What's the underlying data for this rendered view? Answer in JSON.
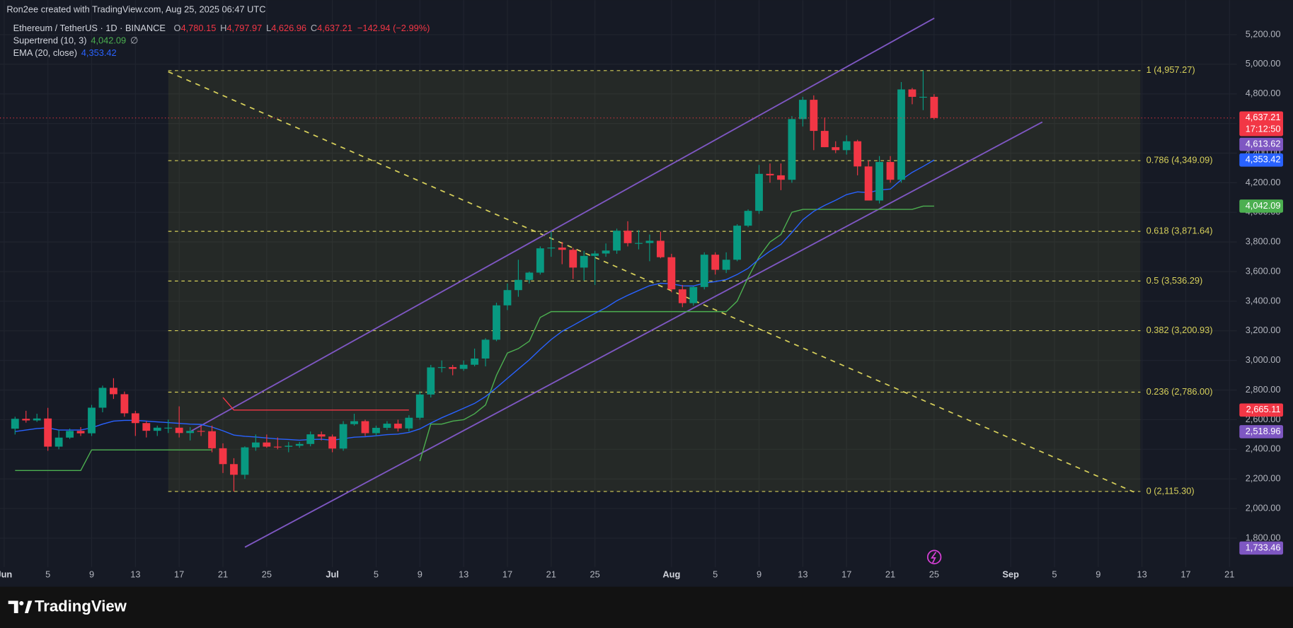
{
  "header": {
    "credit": "Ron2ee created with TradingView.com, Aug 25, 2025 06:47 UTC"
  },
  "chart_data": {
    "type": "candlestick",
    "symbol": "Ethereum / TetherUS · 1D · BINANCE",
    "ohlc_legend": [
      {
        "label": "O",
        "value": "4,780.15"
      },
      {
        "label": "H",
        "value": "4,797.97"
      },
      {
        "label": "L",
        "value": "4,626.96"
      },
      {
        "label": "C",
        "value": "4,637.21"
      }
    ],
    "change": "−142.94 (−2.99%)",
    "x": [
      "2025-06-02",
      "2025-06-03",
      "2025-06-04",
      "2025-06-05",
      "2025-06-06",
      "2025-06-07",
      "2025-06-08",
      "2025-06-09",
      "2025-06-10",
      "2025-06-11",
      "2025-06-12",
      "2025-06-13",
      "2025-06-14",
      "2025-06-15",
      "2025-06-16",
      "2025-06-17",
      "2025-06-18",
      "2025-06-19",
      "2025-06-20",
      "2025-06-21",
      "2025-06-22",
      "2025-06-23",
      "2025-06-24",
      "2025-06-25",
      "2025-06-26",
      "2025-06-27",
      "2025-06-28",
      "2025-06-29",
      "2025-06-30",
      "2025-07-01",
      "2025-07-02",
      "2025-07-03",
      "2025-07-04",
      "2025-07-05",
      "2025-07-06",
      "2025-07-07",
      "2025-07-08",
      "2025-07-09",
      "2025-07-10",
      "2025-07-11",
      "2025-07-12",
      "2025-07-13",
      "2025-07-14",
      "2025-07-15",
      "2025-07-16",
      "2025-07-17",
      "2025-07-18",
      "2025-07-19",
      "2025-07-20",
      "2025-07-21",
      "2025-07-22",
      "2025-07-23",
      "2025-07-24",
      "2025-07-25",
      "2025-07-26",
      "2025-07-27",
      "2025-07-28",
      "2025-07-29",
      "2025-07-30",
      "2025-07-31",
      "2025-08-01",
      "2025-08-02",
      "2025-08-03",
      "2025-08-04",
      "2025-08-05",
      "2025-08-06",
      "2025-08-07",
      "2025-08-08",
      "2025-08-09",
      "2025-08-10",
      "2025-08-11",
      "2025-08-12",
      "2025-08-13",
      "2025-08-14",
      "2025-08-15",
      "2025-08-16",
      "2025-08-17",
      "2025-08-18",
      "2025-08-19",
      "2025-08-20",
      "2025-08-21",
      "2025-08-22",
      "2025-08-23",
      "2025-08-24",
      "2025-08-25"
    ],
    "open": [
      2539,
      2606,
      2595,
      2608,
      2418,
      2479,
      2524,
      2508,
      2681,
      2815,
      2772,
      2643,
      2577,
      2525,
      2546,
      2546,
      2510,
      2524,
      2522,
      2407,
      2300,
      2228,
      2413,
      2446,
      2418,
      2417,
      2424,
      2436,
      2501,
      2486,
      2405,
      2570,
      2590,
      2509,
      2545,
      2573,
      2541,
      2613,
      2770,
      2953,
      2955,
      2943,
      2971,
      3013,
      3140,
      3372,
      3475,
      3544,
      3593,
      3757,
      3762,
      3747,
      3627,
      3706,
      3722,
      3742,
      3876,
      3792,
      3793,
      3808,
      3697,
      3480,
      3387,
      3496,
      3714,
      3612,
      3680,
      3910,
      4010,
      4260,
      4250,
      4220,
      4630,
      4760,
      4550,
      4440,
      4420,
      4480,
      4310,
      4080,
      4340,
      4220,
      4830,
      4780,
      4780.15
    ],
    "high": [
      2620,
      2660,
      2640,
      2680,
      2530,
      2540,
      2550,
      2700,
      2830,
      2880,
      2790,
      2660,
      2590,
      2560,
      2600,
      2690,
      2550,
      2560,
      2560,
      2440,
      2340,
      2420,
      2500,
      2500,
      2480,
      2450,
      2450,
      2520,
      2520,
      2500,
      2590,
      2640,
      2600,
      2560,
      2590,
      2600,
      2630,
      2790,
      2970,
      3000,
      2970,
      3000,
      3080,
      3150,
      3390,
      3520,
      3680,
      3600,
      3770,
      3870,
      3800,
      3760,
      3740,
      3740,
      3790,
      3890,
      3940,
      3880,
      3850,
      3870,
      3720,
      3510,
      3500,
      3730,
      3730,
      3730,
      3920,
      4020,
      4320,
      4330,
      4330,
      4650,
      4780,
      4790,
      4640,
      4480,
      4520,
      4490,
      4350,
      4380,
      4380,
      4880,
      4840,
      4957,
      4797.97
    ],
    "low": [
      2500,
      2580,
      2585,
      2390,
      2400,
      2470,
      2490,
      2490,
      2650,
      2740,
      2620,
      2490,
      2480,
      2490,
      2510,
      2480,
      2460,
      2490,
      2380,
      2240,
      2115,
      2200,
      2390,
      2410,
      2400,
      2380,
      2410,
      2420,
      2460,
      2380,
      2390,
      2560,
      2490,
      2490,
      2530,
      2520,
      2520,
      2600,
      2750,
      2920,
      2900,
      2930,
      2960,
      2960,
      3130,
      3340,
      3430,
      3520,
      3580,
      3700,
      3650,
      3550,
      3540,
      3510,
      3700,
      3720,
      3770,
      3750,
      3670,
      3690,
      3460,
      3360,
      3370,
      3480,
      3580,
      3590,
      3670,
      3900,
      3990,
      4200,
      4150,
      4200,
      4580,
      4420,
      4440,
      4400,
      4390,
      4250,
      4080,
      4060,
      4200,
      4200,
      4730,
      4690,
      4626.96
    ],
    "close": [
      2606,
      2595,
      2608,
      2418,
      2479,
      2524,
      2508,
      2681,
      2815,
      2772,
      2643,
      2577,
      2525,
      2546,
      2546,
      2510,
      2524,
      2522,
      2407,
      2300,
      2228,
      2413,
      2446,
      2418,
      2417,
      2424,
      2436,
      2501,
      2486,
      2405,
      2570,
      2590,
      2509,
      2545,
      2573,
      2541,
      2613,
      2770,
      2953,
      2955,
      2943,
      2971,
      3013,
      3140,
      3372,
      3475,
      3544,
      3593,
      3757,
      3762,
      3747,
      3627,
      3706,
      3722,
      3742,
      3876,
      3792,
      3793,
      3808,
      3697,
      3480,
      3387,
      3496,
      3714,
      3612,
      3680,
      3910,
      4010,
      4260,
      4250,
      4220,
      4630,
      4760,
      4550,
      4440,
      4420,
      4480,
      4310,
      4080,
      4340,
      4220,
      4830,
      4780,
      4780.15,
      4637.21
    ],
    "up_color": "#089981",
    "down_color": "#f23645",
    "indicators": [
      {
        "name": "Supertrend (10, 3)",
        "value_label": "4,042.09",
        "symbol": "∅",
        "color": "#4caf50",
        "down_color": "#f23645",
        "up_values": [
          2257,
          2257,
          2257,
          2257,
          2257,
          2257,
          2257,
          2396,
          2396,
          2396,
          2396,
          2396,
          2396,
          2396,
          2396,
          2396,
          2396,
          2396,
          2396,
          null,
          null,
          null,
          null,
          null,
          null,
          null,
          null,
          null,
          null,
          null,
          null,
          null,
          null,
          null,
          null,
          null,
          null,
          2320,
          2570,
          2570,
          2590,
          2600,
          2640,
          2700,
          2900,
          3050,
          3080,
          3130,
          3290,
          3330,
          3330,
          3330,
          3330,
          3330,
          3330,
          3330,
          3330,
          3330,
          3330,
          3330,
          3330,
          3330,
          3330,
          3330,
          3330,
          3330,
          3400,
          3560,
          3700,
          3800,
          3850,
          4000,
          4020,
          4020,
          4020,
          4020,
          4020,
          4020,
          4020,
          4020,
          4020,
          4020,
          4020,
          4042.09,
          4042.09
        ],
        "down_values": [
          null,
          null,
          null,
          null,
          null,
          null,
          null,
          null,
          null,
          null,
          null,
          null,
          null,
          null,
          null,
          null,
          null,
          null,
          null,
          2750,
          2665,
          2665,
          2665,
          2665,
          2665,
          2665,
          2665,
          2665,
          2665,
          2665,
          2665,
          2665,
          2665,
          2665,
          2665,
          2665,
          2665,
          null,
          null,
          null,
          null,
          null,
          null,
          null,
          null,
          null,
          null,
          null,
          null,
          null,
          null,
          null,
          null,
          null,
          null,
          null,
          null,
          null,
          null,
          null,
          null,
          null,
          null,
          null,
          null,
          null,
          null,
          null,
          null,
          null,
          null,
          null,
          null,
          null,
          null,
          null,
          null,
          null,
          null,
          null,
          null,
          null,
          null,
          null,
          null
        ]
      },
      {
        "name": "EMA (20, close)",
        "value_label": "4,353.42",
        "color": "#2962ff",
        "values": [
          2520,
          2530,
          2540,
          2545,
          2530,
          2530,
          2530,
          2545,
          2570,
          2590,
          2595,
          2595,
          2590,
          2585,
          2580,
          2575,
          2570,
          2568,
          2550,
          2525,
          2496,
          2488,
          2483,
          2476,
          2470,
          2466,
          2462,
          2466,
          2468,
          2462,
          2472,
          2482,
          2485,
          2491,
          2499,
          2503,
          2514,
          2538,
          2577,
          2613,
          2645,
          2677,
          2710,
          2756,
          2816,
          2879,
          2942,
          3004,
          3075,
          3141,
          3197,
          3236,
          3278,
          3318,
          3356,
          3403,
          3440,
          3473,
          3505,
          3521,
          3517,
          3504,
          3503,
          3523,
          3532,
          3546,
          3580,
          3622,
          3685,
          3738,
          3784,
          3864,
          3950,
          4007,
          4047,
          4082,
          4120,
          4138,
          4133,
          4151,
          4157,
          4220,
          4270,
          4310,
          4353.42
        ]
      }
    ],
    "fib_levels": [
      {
        "label": "1 (4,957.27)",
        "value": 4957.27
      },
      {
        "label": "0.786 (4,349.09)",
        "value": 4349.09
      },
      {
        "label": "0.618 (3,871.64)",
        "value": 3871.64
      },
      {
        "label": "0.5 (3,536.29)",
        "value": 3536.29
      },
      {
        "label": "0.382 (3,200.93)",
        "value": 3200.93
      },
      {
        "label": "0.236 (2,786.00)",
        "value": 2786.0
      },
      {
        "label": "0 (2,115.30)",
        "value": 2115.3
      }
    ],
    "fib_color": "#d6cf5a",
    "price_labels": [
      {
        "value": 4637.21,
        "label": "4,637.21",
        "sublabel": "17:12:50",
        "color": "#f23645"
      },
      {
        "value": 4613.62,
        "label": "4,613.62",
        "color": "#7e57c2"
      },
      {
        "value": 4353.42,
        "label": "4,353.42",
        "color": "#2962ff"
      },
      {
        "value": 4042.09,
        "label": "4,042.09",
        "color": "#4caf50"
      },
      {
        "value": 2665.11,
        "label": "2,665.11",
        "color": "#f23645"
      },
      {
        "value": 2518.96,
        "label": "2,518.96",
        "color": "#7e57c2"
      },
      {
        "value": 1733.46,
        "label": "1,733.46",
        "color": "#7e57c2"
      }
    ],
    "xlim": [
      "2025-06-01",
      "2025-09-21"
    ],
    "xticks": [
      {
        "value": "2025-06-01",
        "label": "Jun"
      },
      {
        "value": "2025-06-05",
        "label": "5"
      },
      {
        "value": "2025-06-09",
        "label": "9"
      },
      {
        "value": "2025-06-13",
        "label": "13"
      },
      {
        "value": "2025-06-17",
        "label": "17"
      },
      {
        "value": "2025-06-21",
        "label": "21"
      },
      {
        "value": "2025-06-25",
        "label": "25"
      },
      {
        "value": "2025-07-01",
        "label": "Jul"
      },
      {
        "value": "2025-07-05",
        "label": "5"
      },
      {
        "value": "2025-07-09",
        "label": "9"
      },
      {
        "value": "2025-07-13",
        "label": "13"
      },
      {
        "value": "2025-07-17",
        "label": "17"
      },
      {
        "value": "2025-07-21",
        "label": "21"
      },
      {
        "value": "2025-07-25",
        "label": "25"
      },
      {
        "value": "2025-08-01",
        "label": "Aug"
      },
      {
        "value": "2025-08-05",
        "label": "5"
      },
      {
        "value": "2025-08-09",
        "label": "9"
      },
      {
        "value": "2025-08-13",
        "label": "13"
      },
      {
        "value": "2025-08-17",
        "label": "17"
      },
      {
        "value": "2025-08-21",
        "label": "21"
      },
      {
        "value": "2025-08-25",
        "label": "25"
      },
      {
        "value": "2025-09-01",
        "label": "Sep"
      },
      {
        "value": "2025-09-05",
        "label": "5"
      },
      {
        "value": "2025-09-09",
        "label": "9"
      },
      {
        "value": "2025-09-13",
        "label": "13"
      },
      {
        "value": "2025-09-17",
        "label": "17"
      },
      {
        "value": "2025-09-21",
        "label": "21"
      }
    ],
    "ylim": [
      1700,
      5300
    ],
    "yticks": [
      {
        "value": 1800,
        "label": "1,800.00"
      },
      {
        "value": 2000,
        "label": "2,000.00"
      },
      {
        "value": 2200,
        "label": "2,200.00"
      },
      {
        "value": 2400,
        "label": "2,400.00"
      },
      {
        "value": 2600,
        "label": "2,600.00"
      },
      {
        "value": 2800,
        "label": "2,800.00"
      },
      {
        "value": 3000,
        "label": "3,000.00"
      },
      {
        "value": 3200,
        "label": "3,200.00"
      },
      {
        "value": 3400,
        "label": "3,400.00"
      },
      {
        "value": 3600,
        "label": "3,600.00"
      },
      {
        "value": 3800,
        "label": "3,800.00"
      },
      {
        "value": 4000,
        "label": "4,000.00"
      },
      {
        "value": 4200,
        "label": "4,200.00"
      },
      {
        "value": 4400,
        "label": "4,400.00"
      },
      {
        "value": 4600,
        "label": "4,600.00"
      },
      {
        "value": 4800,
        "label": "4,800.00"
      },
      {
        "value": 5000,
        "label": "5,000.00"
      },
      {
        "value": 5200,
        "label": "5,200.00"
      }
    ],
    "grid": true
  },
  "footer": {
    "brand": "TradingView"
  }
}
